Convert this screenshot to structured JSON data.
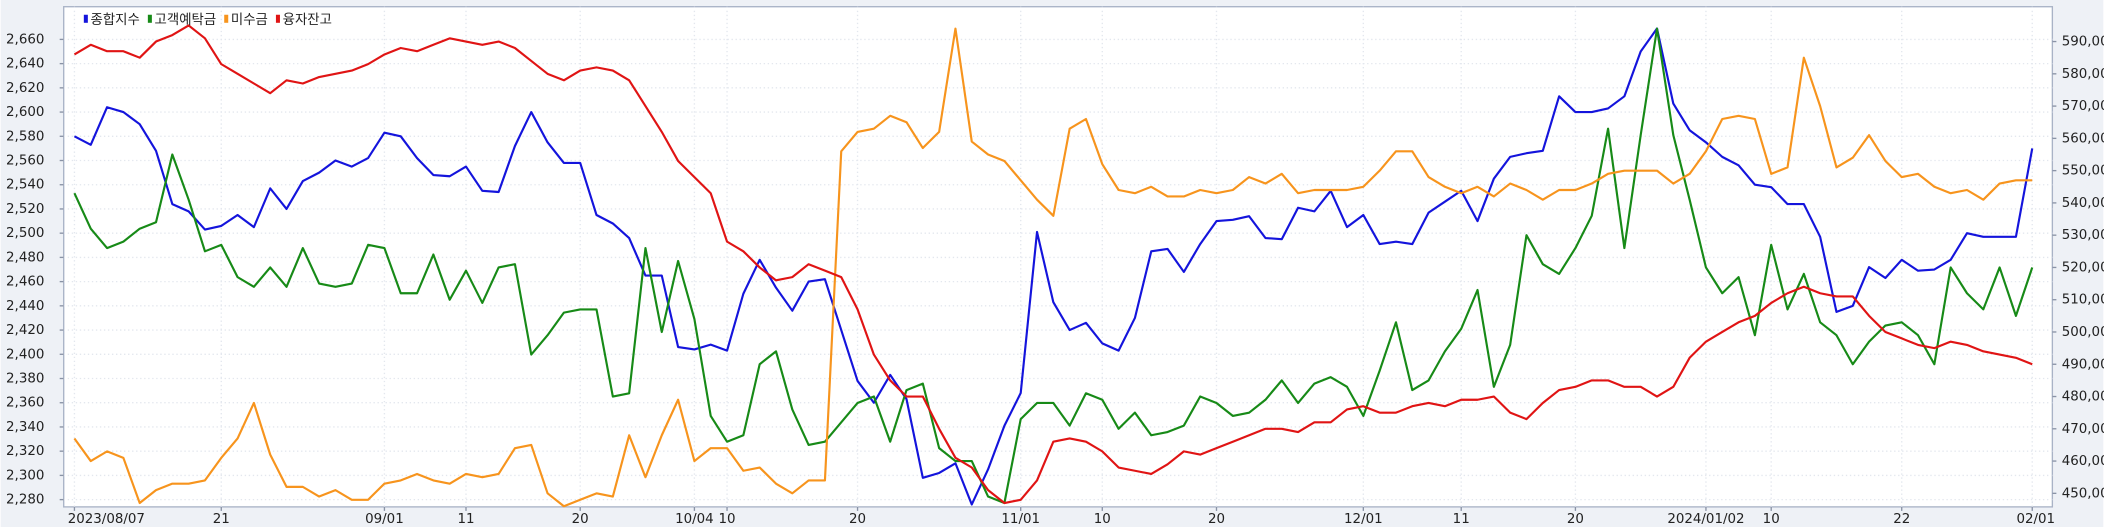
{
  "chart_data": {
    "type": "line",
    "categories": [
      "2023/08/07",
      null,
      null,
      null,
      null,
      null,
      null,
      null,
      null,
      "21",
      null,
      null,
      null,
      null,
      null,
      null,
      null,
      null,
      null,
      "09/01",
      null,
      null,
      null,
      null,
      "11",
      null,
      null,
      null,
      null,
      null,
      null,
      "20",
      null,
      null,
      null,
      null,
      null,
      null,
      "10/04",
      null,
      "10",
      null,
      null,
      null,
      null,
      null,
      null,
      null,
      "20",
      null,
      null,
      null,
      null,
      null,
      null,
      null,
      null,
      null,
      "11/01",
      null,
      null,
      null,
      null,
      "10",
      null,
      null,
      null,
      null,
      null,
      null,
      "20",
      null,
      null,
      null,
      null,
      null,
      null,
      null,
      null,
      "12/01",
      null,
      null,
      null,
      null,
      null,
      "11",
      null,
      null,
      null,
      null,
      null,
      null,
      "20",
      null,
      null,
      null,
      null,
      null,
      null,
      null,
      "2024/01/02",
      null,
      null,
      null,
      "10",
      null,
      null,
      null,
      null,
      null,
      null,
      null,
      "22",
      null,
      null,
      null,
      null,
      null,
      null,
      null,
      "02/01"
    ],
    "series": [
      {
        "name": "종합지수",
        "color": "#1414dc",
        "axis": "y",
        "values": [
          2580,
          2573,
          2604,
          2600,
          2590,
          2568,
          2524,
          2518,
          2503,
          2506,
          2515,
          2505,
          2537,
          2520,
          2543,
          2550,
          2560,
          2555,
          2562,
          2583,
          2580,
          2562,
          2548,
          2547,
          2555,
          2535,
          2534,
          2572,
          2600,
          2575,
          2558,
          2558,
          2515,
          2508,
          2496,
          2465,
          2465,
          2406,
          2404,
          2408,
          2403,
          2450,
          2478,
          2455,
          2436,
          2460,
          2462,
          2420,
          2378,
          2360,
          2383,
          2363,
          2298,
          2302,
          2310,
          2276,
          2305,
          2341,
          2368,
          2501,
          2443,
          2420,
          2426,
          2409,
          2403,
          2430,
          2485,
          2487,
          2468,
          2491,
          2510,
          2511,
          2514,
          2496,
          2495,
          2521,
          2518,
          2535,
          2505,
          2515,
          2491,
          2493,
          2491,
          2517,
          2526,
          2535,
          2510,
          2545,
          2563,
          2566,
          2568,
          2613,
          2600,
          2600,
          2603,
          2613,
          2650,
          2669,
          2607,
          2585,
          2575,
          2563,
          2556,
          2540,
          2538,
          2524,
          2524,
          2497,
          2435,
          2440,
          2472,
          2463,
          2478,
          2469,
          2470,
          2478,
          2500,
          2497,
          2497,
          2497,
          2570
        ]
      },
      {
        "name": "고객예탁금",
        "color": "#178a17",
        "axis": "y2",
        "values": [
          543000,
          532000,
          526000,
          528000,
          532000,
          534000,
          555000,
          541000,
          525000,
          527000,
          517000,
          514000,
          520000,
          514000,
          526000,
          515000,
          514000,
          515000,
          527000,
          526000,
          512000,
          512000,
          524000,
          510000,
          519000,
          509000,
          520000,
          521000,
          493000,
          499000,
          506000,
          507000,
          507000,
          480000,
          481000,
          526000,
          500000,
          522000,
          504000,
          474000,
          466000,
          468000,
          490000,
          494000,
          476000,
          465000,
          466000,
          472000,
          478000,
          480000,
          466000,
          482000,
          484000,
          464000,
          460000,
          460000,
          449000,
          447000,
          473000,
          478000,
          478000,
          471000,
          481000,
          479000,
          470000,
          475000,
          468000,
          469000,
          471000,
          480000,
          478000,
          474000,
          475000,
          479000,
          485000,
          478000,
          484000,
          486000,
          483000,
          474000,
          488000,
          503000,
          482000,
          485000,
          494000,
          501000,
          513000,
          483000,
          496000,
          530000,
          521000,
          518000,
          526000,
          536000,
          563000,
          526000,
          561000,
          594000,
          561000,
          541000,
          520000,
          512000,
          517000,
          499000,
          527000,
          507000,
          518000,
          503000,
          499000,
          490000,
          497000,
          502000,
          503000,
          499000,
          490000,
          520000,
          512000,
          507000,
          520000,
          505000,
          520000
        ]
      },
      {
        "name": "미수금",
        "color": "#f7941d",
        "axis": "y2",
        "values": [
          467000,
          460000,
          463000,
          461000,
          447000,
          451000,
          453000,
          453000,
          454000,
          461000,
          467000,
          478000,
          462000,
          452000,
          452000,
          449000,
          451000,
          448000,
          448000,
          453000,
          454000,
          456000,
          454000,
          453000,
          456000,
          455000,
          456000,
          464000,
          465000,
          450000,
          446000,
          448000,
          450000,
          449000,
          468000,
          455000,
          468000,
          479000,
          460000,
          464000,
          464000,
          457000,
          458000,
          453000,
          450000,
          454000,
          454000,
          556000,
          562000,
          563000,
          567000,
          565000,
          557000,
          562000,
          594000,
          559000,
          555000,
          553000,
          547000,
          541000,
          536000,
          563000,
          566000,
          552000,
          544000,
          543000,
          545000,
          542000,
          542000,
          544000,
          543000,
          544000,
          548000,
          546000,
          549000,
          543000,
          544000,
          544000,
          544000,
          545000,
          550000,
          556000,
          556000,
          548000,
          545000,
          543000,
          545000,
          542000,
          546000,
          544000,
          541000,
          544000,
          544000,
          546000,
          549000,
          550000,
          550000,
          550000,
          546000,
          549000,
          556000,
          566000,
          567000,
          566000,
          549000,
          551000,
          585000,
          570000,
          551000,
          554000,
          561000,
          553000,
          548000,
          549000,
          545000,
          543000,
          544000,
          541000,
          546000,
          547000,
          547000
        ]
      },
      {
        "name": "융자잔고",
        "color": "#e01414",
        "axis": "y2",
        "values": [
          586000,
          589000,
          587000,
          587000,
          585000,
          590000,
          592000,
          595000,
          591000,
          583000,
          580000,
          577000,
          574000,
          578000,
          577000,
          579000,
          580000,
          581000,
          583000,
          586000,
          588000,
          587000,
          589000,
          591000,
          590000,
          589000,
          590000,
          588000,
          584000,
          580000,
          578000,
          581000,
          582000,
          581000,
          578000,
          570000,
          562000,
          553000,
          548000,
          543000,
          528000,
          525000,
          520000,
          516000,
          517000,
          521000,
          519000,
          517000,
          507000,
          493000,
          485000,
          480000,
          480000,
          470000,
          461000,
          458000,
          451000,
          447000,
          448000,
          454000,
          466000,
          467000,
          466000,
          463000,
          458000,
          457000,
          456000,
          459000,
          463000,
          462000,
          464000,
          466000,
          468000,
          470000,
          470000,
          469000,
          472000,
          472000,
          476000,
          477000,
          475000,
          475000,
          477000,
          478000,
          477000,
          479000,
          479000,
          480000,
          475000,
          473000,
          478000,
          482000,
          483000,
          485000,
          485000,
          483000,
          483000,
          480000,
          483000,
          492000,
          497000,
          500000,
          503000,
          505000,
          509000,
          512000,
          514000,
          512000,
          511000,
          511000,
          505000,
          500000,
          498000,
          496000,
          495000,
          497000,
          496000,
          494000,
          493000,
          492000,
          490000
        ]
      }
    ],
    "ylim": [
      2274,
      2687
    ],
    "yticks": [
      {
        "value": 2280,
        "label": "2,280"
      },
      {
        "value": 2300,
        "label": "2,300"
      },
      {
        "value": 2320,
        "label": "2,320"
      },
      {
        "value": 2340,
        "label": "2,340"
      },
      {
        "value": 2360,
        "label": "2,360"
      },
      {
        "value": 2380,
        "label": "2,380"
      },
      {
        "value": 2400,
        "label": "2,400"
      },
      {
        "value": 2420,
        "label": "2,420"
      },
      {
        "value": 2440,
        "label": "2,440"
      },
      {
        "value": 2460,
        "label": "2,460"
      },
      {
        "value": 2480,
        "label": "2,480"
      },
      {
        "value": 2500,
        "label": "2,500"
      },
      {
        "value": 2520,
        "label": "2,520"
      },
      {
        "value": 2540,
        "label": "2,540"
      },
      {
        "value": 2560,
        "label": "2,560"
      },
      {
        "value": 2580,
        "label": "2,580"
      },
      {
        "value": 2600,
        "label": "2,600"
      },
      {
        "value": 2620,
        "label": "2,620"
      },
      {
        "value": 2640,
        "label": "2,640"
      },
      {
        "value": 2660,
        "label": "2,660"
      }
    ],
    "y2lim": [
      445800,
      600800
    ],
    "y2ticks": [
      {
        "value": 450000,
        "label": "450,000"
      },
      {
        "value": 460000,
        "label": "460,000"
      },
      {
        "value": 470000,
        "label": "470,000"
      },
      {
        "value": 480000,
        "label": "480,000"
      },
      {
        "value": 490000,
        "label": "490,000"
      },
      {
        "value": 500000,
        "label": "500,000"
      },
      {
        "value": 510000,
        "label": "510,000"
      },
      {
        "value": 520000,
        "label": "520,000"
      },
      {
        "value": 530000,
        "label": "530,000"
      },
      {
        "value": 540000,
        "label": "540,000"
      },
      {
        "value": 550000,
        "label": "550,000"
      },
      {
        "value": 560000,
        "label": "560,000"
      },
      {
        "value": 570000,
        "label": "570,000"
      },
      {
        "value": 580000,
        "label": "580,000"
      },
      {
        "value": 590000,
        "label": "590,000"
      }
    ],
    "grid": true,
    "legend": "top-left"
  }
}
